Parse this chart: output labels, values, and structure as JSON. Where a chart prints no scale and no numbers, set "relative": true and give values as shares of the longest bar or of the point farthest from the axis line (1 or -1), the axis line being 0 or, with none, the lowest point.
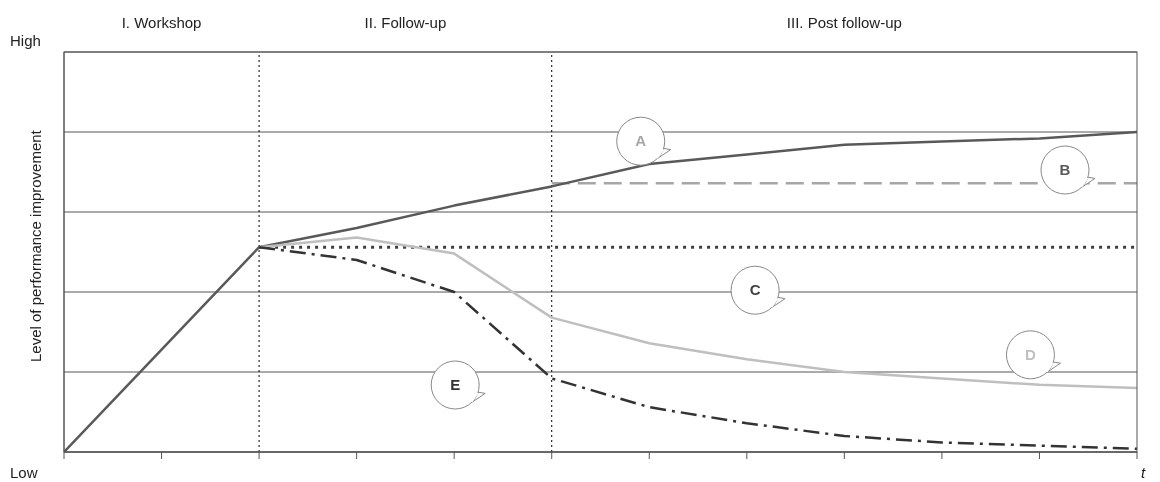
{
  "chart_data": {
    "type": "line",
    "relative": true,
    "ylabel": "Level of performance improvement",
    "xlabel": "t",
    "annotations": [
      "I. Workshop",
      "II. Follow-up",
      "III. Post follow-up",
      "High",
      "Low"
    ],
    "categories": [
      null,
      null,
      null,
      null,
      null,
      null,
      null,
      null,
      null,
      null,
      null,
      null
    ],
    "grid": "y",
    "marker": "none",
    "series": [
      {
        "name": "A",
        "color": "#a6a6a6",
        "line_style": "dashed",
        "values": [
          null,
          null,
          null,
          null,
          null,
          0.84,
          0.84,
          0.84,
          0.84,
          0.84,
          0.84,
          0.84
        ]
      },
      {
        "name": "B",
        "color": "#595959",
        "line_style": "solid",
        "values": [
          0,
          0.32,
          0.64,
          0.7,
          0.77,
          0.83,
          0.9,
          0.93,
          0.96,
          0.97,
          0.98,
          1
        ]
      },
      {
        "name": "C",
        "color": "#404040",
        "line_style": "dotted",
        "values": [
          null,
          null,
          0.64,
          0.64,
          0.64,
          0.64,
          0.64,
          0.64,
          0.64,
          0.64,
          0.64,
          0.64
        ]
      },
      {
        "name": "D",
        "color": "#bfbfbf",
        "line_style": "solid",
        "values": [
          null,
          null,
          0.64,
          0.67,
          0.62,
          0.42,
          0.34,
          0.29,
          0.25,
          0.23,
          0.21,
          0.2
        ]
      },
      {
        "name": "E",
        "color": "#333333",
        "line_style": "dashdot",
        "values": [
          null,
          null,
          0.64,
          0.6,
          0.5,
          0.23,
          0.14,
          0.09,
          0.05,
          0.03,
          0.02,
          0.01
        ]
      }
    ]
  }
}
